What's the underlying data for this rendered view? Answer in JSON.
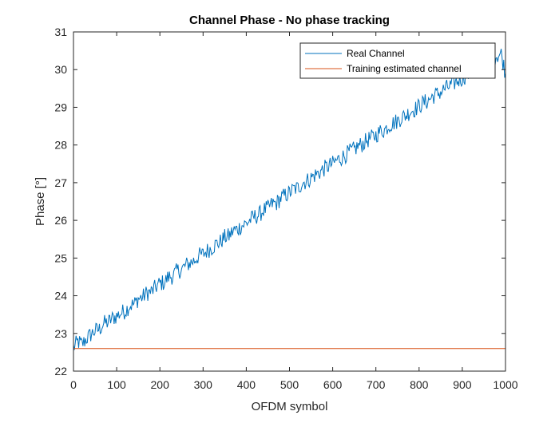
{
  "chart_data": {
    "type": "line",
    "title": "Channel Phase - No phase tracking",
    "xlabel": "OFDM symbol",
    "ylabel": "Phase [°]",
    "xlim": [
      0,
      1000
    ],
    "ylim": [
      22,
      31
    ],
    "x_ticks": [
      0,
      100,
      200,
      300,
      400,
      500,
      600,
      700,
      800,
      900,
      1000
    ],
    "y_ticks": [
      22,
      23,
      24,
      25,
      26,
      27,
      28,
      29,
      30,
      31
    ],
    "x_tick_labels": [
      "0",
      "100",
      "200",
      "300",
      "400",
      "500",
      "600",
      "700",
      "800",
      "900",
      "1000"
    ],
    "y_tick_labels": [
      "22",
      "23",
      "24",
      "25",
      "26",
      "27",
      "28",
      "29",
      "30",
      "31"
    ],
    "grid": false,
    "legend_position": "top-right",
    "series": [
      {
        "name": "Real Channel",
        "color": "#0072BD",
        "x": [
          0,
          10,
          20,
          30,
          40,
          50,
          60,
          70,
          80,
          90,
          100,
          110,
          120,
          130,
          140,
          150,
          160,
          170,
          180,
          190,
          200,
          210,
          220,
          230,
          240,
          250,
          260,
          270,
          280,
          290,
          300,
          310,
          320,
          330,
          340,
          350,
          360,
          370,
          380,
          390,
          400,
          410,
          420,
          430,
          440,
          450,
          460,
          470,
          480,
          490,
          500,
          510,
          520,
          530,
          540,
          550,
          560,
          570,
          580,
          590,
          600,
          610,
          620,
          630,
          640,
          650,
          660,
          670,
          680,
          690,
          700,
          710,
          720,
          730,
          740,
          750,
          760,
          770,
          780,
          790,
          800,
          810,
          820,
          830,
          840,
          850,
          860,
          870,
          880,
          890,
          900,
          910,
          920,
          930,
          940,
          950,
          960,
          970,
          980,
          990,
          1000
        ],
        "y": [
          22.62,
          22.78,
          22.71,
          22.86,
          22.97,
          23.07,
          23.11,
          23.27,
          23.29,
          23.4,
          23.46,
          23.54,
          23.6,
          23.74,
          23.77,
          23.92,
          23.96,
          24.08,
          24.1,
          24.22,
          24.33,
          24.35,
          24.5,
          24.52,
          24.66,
          24.69,
          24.81,
          24.87,
          24.94,
          25.06,
          25.1,
          25.2,
          25.27,
          25.37,
          25.43,
          25.55,
          25.58,
          25.73,
          25.77,
          25.86,
          25.92,
          26.02,
          26.1,
          26.15,
          26.27,
          26.32,
          26.44,
          26.46,
          26.59,
          26.66,
          26.73,
          26.83,
          26.86,
          27.0,
          27.04,
          27.13,
          27.21,
          27.28,
          27.37,
          27.44,
          27.5,
          27.6,
          27.66,
          27.74,
          27.82,
          27.88,
          27.98,
          28.03,
          28.13,
          28.19,
          28.26,
          28.36,
          28.4,
          28.52,
          28.58,
          28.64,
          28.74,
          28.79,
          28.9,
          28.95,
          29.03,
          29.12,
          29.16,
          29.28,
          29.34,
          29.4,
          29.5,
          29.55,
          29.63,
          29.71,
          29.77,
          29.86,
          29.92,
          30.0,
          30.04,
          30.14,
          30.19,
          30.31,
          30.37,
          30.42,
          29.9
        ]
      },
      {
        "name": "Training estimated channel",
        "color": "#D95319",
        "x": [
          0,
          1000
        ],
        "y": [
          22.6,
          22.6
        ]
      }
    ]
  }
}
